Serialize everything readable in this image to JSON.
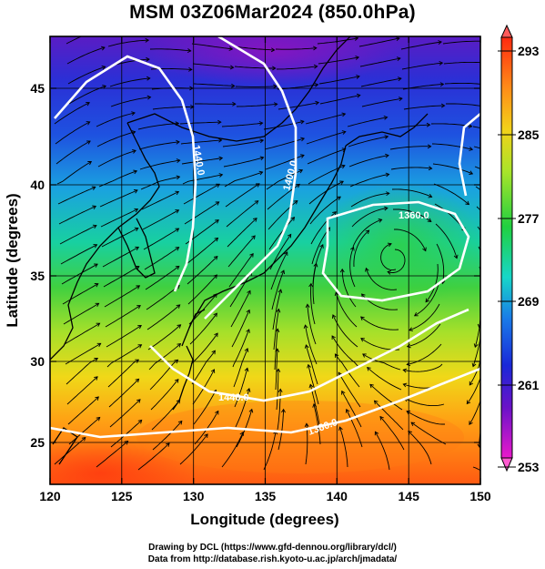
{
  "title": "MSM 03Z06Mar2024 (850.0hPa)",
  "credits": {
    "line1": "Drawing by DCL (https://www.gfd-dennou.org/library/dcl/)",
    "line2": "Data from http://database.rish.kyoto-u.ac.jp/arch/jmadata/"
  },
  "axes": {
    "xlabel": "Longitude (degrees)",
    "ylabel": "Latitude  (degrees)",
    "xticks": [
      "120",
      "125",
      "130",
      "135",
      "140",
      "145",
      "150"
    ],
    "yticks": [
      "25",
      "30",
      "35",
      "40",
      "45"
    ]
  },
  "colorbar": {
    "labels": [
      "293",
      "285",
      "277",
      "269",
      "261",
      "253"
    ]
  },
  "contour_labels": [
    "1440.0",
    "1400.0",
    "1360.0",
    "1440.0",
    "1360.0"
  ],
  "colors": {
    "frame": "#000000",
    "contour": "#ffffff",
    "cold": "#7a0fb8",
    "warm": "#f04010"
  }
}
